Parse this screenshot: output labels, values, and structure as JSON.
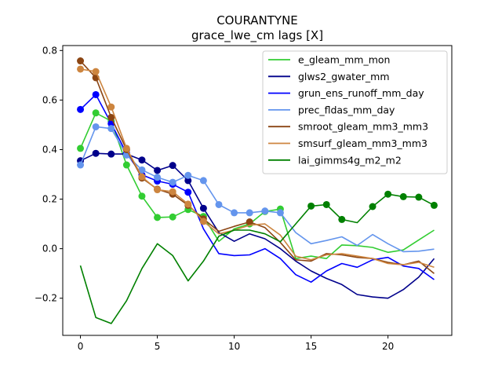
{
  "chart_data": {
    "type": "line",
    "title": "COURANTYNE",
    "subtitle": "grace_lwe_cm lags [X]",
    "xlabel": "",
    "ylabel": "",
    "xlim": [
      -1.15,
      24.15
    ],
    "ylim": [
      -0.35,
      0.82
    ],
    "x_ticks": [
      0,
      5,
      10,
      15,
      20
    ],
    "y_ticks": [
      -0.2,
      0.0,
      0.2,
      0.4,
      0.6,
      0.8
    ],
    "grid": false,
    "legend_position": "top-right",
    "x": [
      0,
      1,
      2,
      3,
      4,
      5,
      6,
      7,
      8,
      9,
      10,
      11,
      12,
      13,
      14,
      15,
      16,
      17,
      18,
      19,
      20,
      21,
      22,
      23
    ],
    "series": [
      {
        "name": "e_gleam_mm_mon",
        "color": "#32cd32",
        "values": [
          0.405,
          0.548,
          0.515,
          0.338,
          0.212,
          0.126,
          0.128,
          0.158,
          0.13,
          0.03,
          0.08,
          0.1,
          0.15,
          0.16,
          -0.04,
          -0.03,
          -0.04,
          0.015,
          0.012,
          0.005,
          -0.015,
          -0.005,
          0.035,
          0.075
        ],
        "markers": [
          0,
          1,
          2,
          3,
          4,
          5,
          6,
          7,
          8,
          11,
          12,
          13
        ]
      },
      {
        "name": "glws2_gwater_mm",
        "color": "#00008b",
        "values": [
          0.355,
          0.385,
          0.382,
          0.382,
          0.358,
          0.316,
          0.336,
          0.275,
          0.163,
          0.065,
          0.03,
          0.06,
          0.04,
          0.0,
          -0.05,
          -0.09,
          -0.12,
          -0.145,
          -0.185,
          -0.195,
          -0.2,
          -0.165,
          -0.115,
          -0.04
        ],
        "markers": [
          0,
          1,
          2,
          3,
          4,
          5,
          6,
          7,
          8
        ]
      },
      {
        "name": "grun_ens_runoff_mm_day",
        "color": "#0000ff",
        "values": [
          0.562,
          0.622,
          0.505,
          0.385,
          0.298,
          0.273,
          0.26,
          0.228,
          0.08,
          -0.02,
          -0.028,
          -0.025,
          0.0,
          -0.04,
          -0.105,
          -0.135,
          -0.09,
          -0.06,
          -0.075,
          -0.045,
          -0.035,
          -0.07,
          -0.08,
          -0.125
        ],
        "markers": [
          0,
          1,
          2,
          3,
          4,
          5,
          6,
          7
        ]
      },
      {
        "name": "prec_fldas_mm_day",
        "color": "#6495ed",
        "values": [
          0.338,
          0.492,
          0.485,
          0.378,
          0.318,
          0.288,
          0.268,
          0.296,
          0.275,
          0.178,
          0.145,
          0.145,
          0.152,
          0.145,
          0.065,
          0.02,
          0.033,
          0.048,
          0.013,
          0.057,
          0.02,
          -0.012,
          -0.01,
          -0.002
        ],
        "markers": [
          0,
          1,
          2,
          3,
          4,
          5,
          6,
          7,
          8,
          9,
          10,
          11,
          12,
          13
        ]
      },
      {
        "name": "smroot_gleam_mm3_mm3",
        "color": "#8b4513",
        "values": [
          0.758,
          0.69,
          0.53,
          0.4,
          0.285,
          0.24,
          0.22,
          0.175,
          0.12,
          0.07,
          0.09,
          0.108,
          0.085,
          0.025,
          -0.045,
          -0.05,
          -0.02,
          -0.025,
          -0.035,
          -0.04,
          -0.055,
          -0.065,
          -0.05,
          -0.1
        ],
        "markers": [
          0,
          1,
          2,
          3,
          4,
          5,
          6,
          7,
          8,
          11
        ]
      },
      {
        "name": "smsurf_gleam_mm3_mm3",
        "color": "#cd853f",
        "values": [
          0.725,
          0.715,
          0.572,
          0.405,
          0.29,
          0.238,
          0.23,
          0.18,
          0.11,
          0.06,
          0.075,
          0.095,
          0.1,
          0.055,
          -0.03,
          -0.045,
          -0.025,
          -0.02,
          -0.03,
          -0.04,
          -0.06,
          -0.065,
          -0.055,
          -0.075
        ],
        "markers": [
          0,
          1,
          2,
          3,
          4,
          5,
          6,
          7,
          8
        ]
      },
      {
        "name": "lai_gimms4g_m2_m2",
        "color": "#008000",
        "values": [
          -0.068,
          -0.278,
          -0.302,
          -0.21,
          -0.08,
          0.02,
          -0.028,
          -0.13,
          -0.05,
          0.05,
          0.075,
          0.075,
          0.06,
          0.028,
          0.1,
          0.172,
          0.178,
          0.118,
          0.105,
          0.17,
          0.22,
          0.21,
          0.208,
          0.175
        ],
        "markers": [
          15,
          16,
          17,
          19,
          20,
          21,
          22,
          23
        ]
      }
    ]
  }
}
